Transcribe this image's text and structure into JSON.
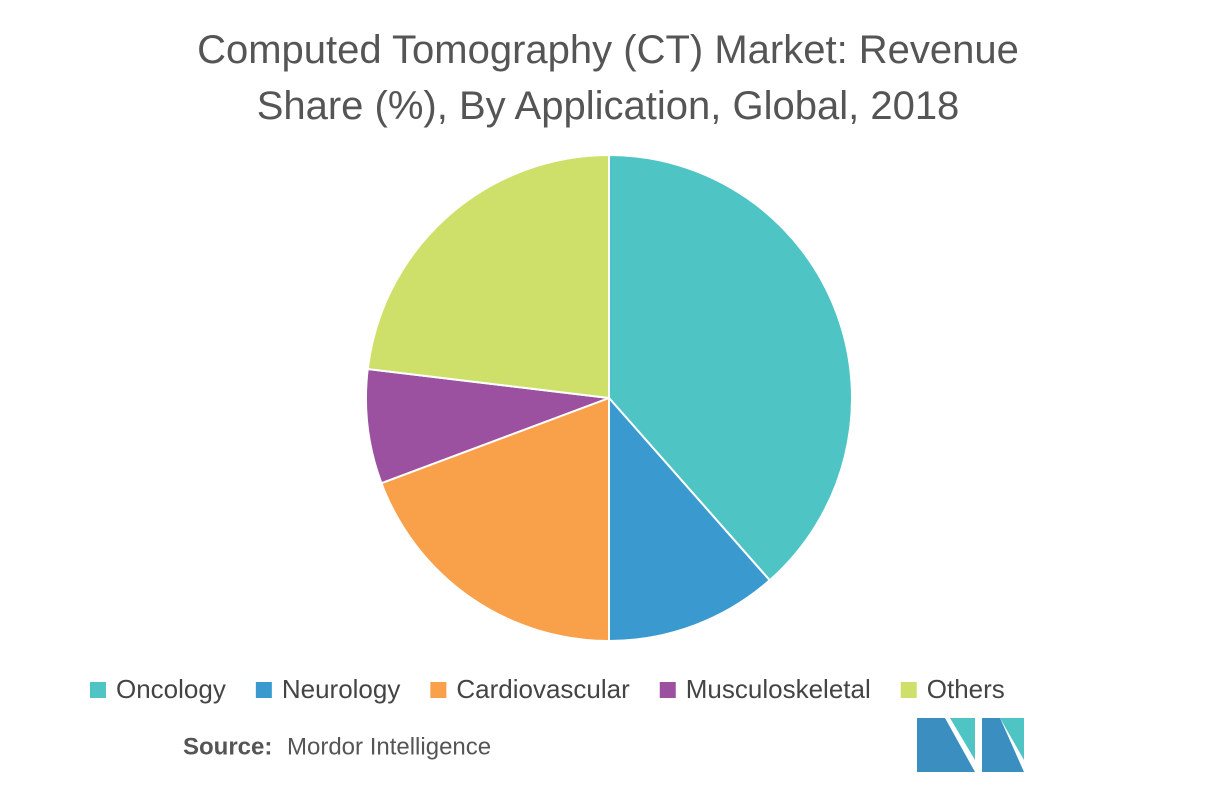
{
  "chart_data": {
    "type": "pie",
    "title": "Computed Tomography (CT) Market: Revenue Share (%), By Application, Global, 2018",
    "categories": [
      "Oncology",
      "Neurology",
      "Cardiovascular",
      "Musculoskeletal",
      "Others"
    ],
    "values": [
      38.5,
      11.5,
      19.3,
      7.6,
      23.1
    ],
    "colors": [
      "#4fc4c4",
      "#3a9ad0",
      "#f9a04a",
      "#9b50a0",
      "#cfe06a"
    ],
    "source_label": "Source:",
    "source": "Mordor Intelligence"
  }
}
